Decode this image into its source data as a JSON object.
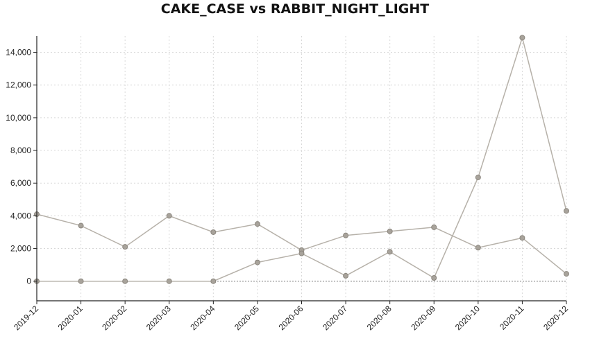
{
  "chart_data": {
    "type": "line",
    "title": "CAKE_CASE vs RABBIT_NIGHT_LIGHT",
    "xlabel": "",
    "ylabel": "",
    "categories": [
      "2019-12",
      "2020-01",
      "2020-02",
      "2020-03",
      "2020-04",
      "2020-05",
      "2020-06",
      "2020-07",
      "2020-08",
      "2020-09",
      "2020-10",
      "2020-11",
      "2020-12"
    ],
    "series": [
      {
        "values": [
          4100,
          3400,
          2100,
          4000,
          3000,
          3500,
          1900,
          2800,
          3050,
          3300,
          2050,
          2650,
          450
        ]
      },
      {
        "values": [
          0,
          0,
          0,
          0,
          0,
          1150,
          1700,
          330,
          1800,
          200,
          6350,
          14900,
          4300
        ]
      }
    ],
    "ylim": [
      -1200,
      15000
    ],
    "yticks": [
      0,
      2000,
      4000,
      6000,
      8000,
      10000,
      12000,
      14000
    ],
    "ytick_labels": [
      "0",
      "2,000",
      "4,000",
      "6,000",
      "8,000",
      "10,000",
      "12,000",
      "14,000"
    ],
    "grid": true,
    "legend": "none",
    "colors": {
      "line": "#b6b1a9",
      "marker_fill": "#a8a39b",
      "marker_stroke": "#8b867e",
      "axis": "#222222",
      "grid": "#d8d8d8",
      "zero_line": "#777777"
    }
  }
}
